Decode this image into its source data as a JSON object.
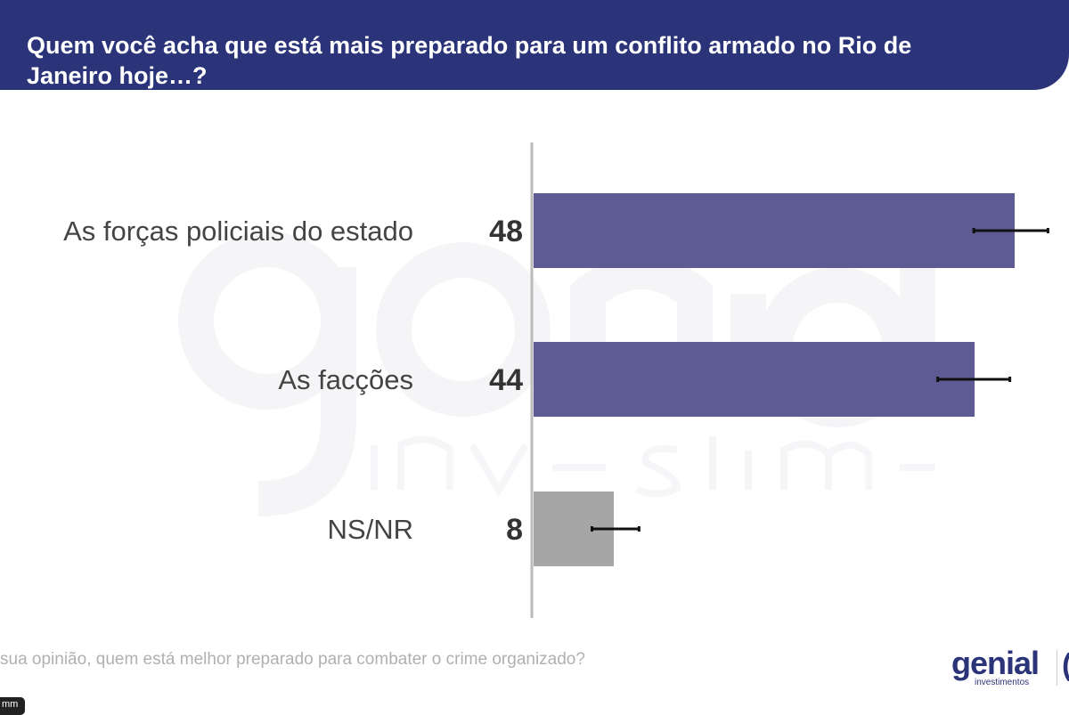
{
  "header": {
    "title": "Quem você acha que está mais preparado para um conflito armado no Rio de Janeiro hoje…?"
  },
  "watermark": {
    "line1": "genial",
    "line2": "investimentos"
  },
  "chart_data": {
    "type": "bar",
    "orientation": "horizontal",
    "title": "Quem você acha que está mais preparado para um conflito armado no Rio de Janeiro hoje…?",
    "categories": [
      "As forças policiais do estado",
      "As facções",
      "NS/NR"
    ],
    "values": [
      48,
      44,
      8
    ],
    "value_labels": [
      "48",
      "44",
      "8"
    ],
    "error_bars": [
      [
        44.1,
        51.5
      ],
      [
        40.5,
        47.7
      ],
      [
        6.0,
        10.7
      ]
    ],
    "colors": [
      "#5e5b94",
      "#5e5b94",
      "#a6a6a6"
    ],
    "xlim": [
      0,
      53
    ],
    "grid": false
  },
  "footer": {
    "question": "sua opinião, quem está melhor preparado para combater o crime organizado?",
    "tag": "mm",
    "logo_main": "genial",
    "logo_sub": "investimentos",
    "logo_partial": "("
  }
}
